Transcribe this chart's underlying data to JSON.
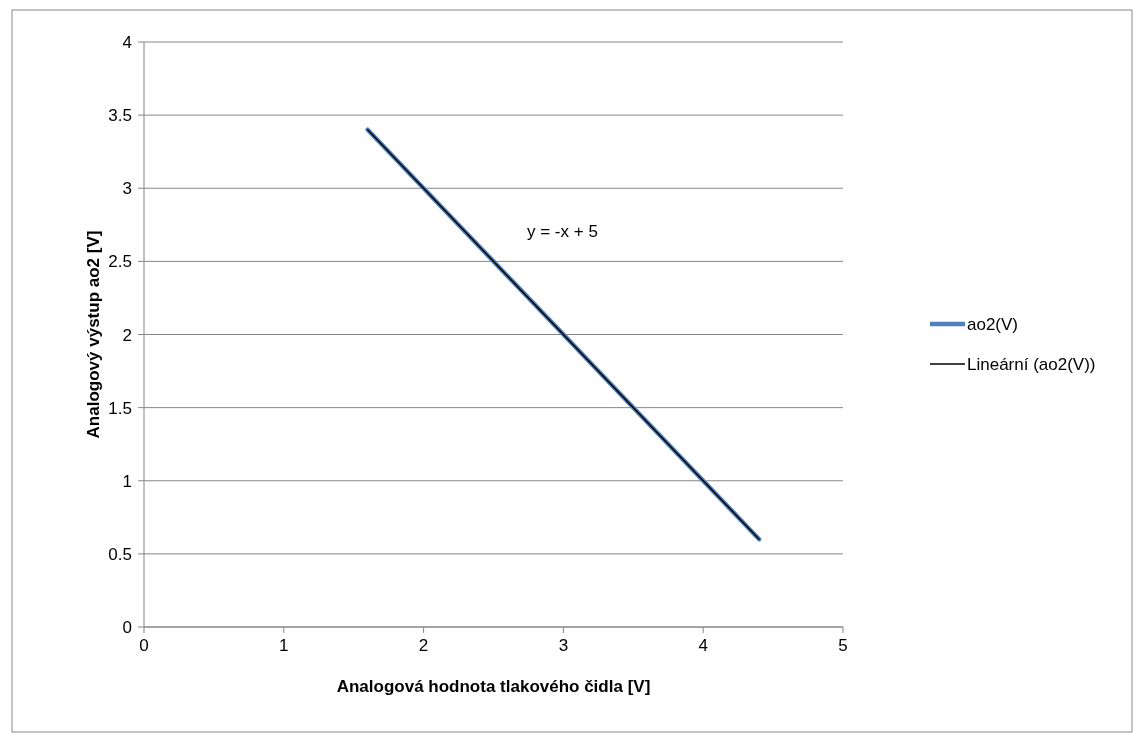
{
  "chart_data": {
    "type": "line",
    "xlabel": "Analogová hodnota tlakového čidla [V]",
    "ylabel": "Analogový výstup ao2 [V]",
    "annotations": [
      "y = -x + 5"
    ],
    "x": [
      1.6,
      4.4
    ],
    "series": [
      {
        "name": "ao2(V)",
        "color": "#4f81bd",
        "values": [
          3.4,
          0.6
        ]
      },
      {
        "name": "Lineární (ao2(V))",
        "color": "#000000",
        "values": [
          3.4,
          0.6
        ]
      }
    ],
    "xlim": [
      0,
      5
    ],
    "xticks": [
      0,
      1,
      2,
      3,
      4,
      5
    ],
    "ylim": [
      0,
      4
    ],
    "yticks": [
      0,
      0.5,
      1,
      1.5,
      2,
      2.5,
      3,
      3.5,
      4
    ],
    "grid": "y",
    "legend": "right",
    "marker": "none",
    "line_style": "solid"
  }
}
